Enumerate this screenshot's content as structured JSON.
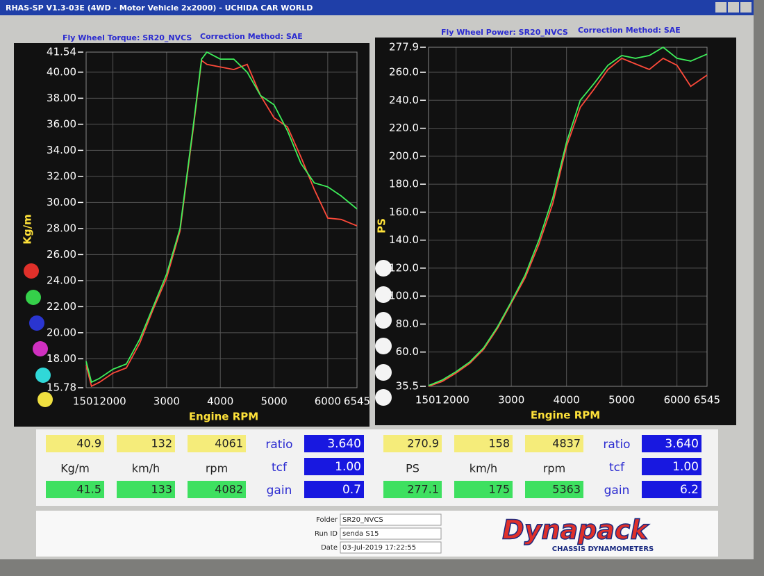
{
  "window": {
    "title": "RHAS-SP V1.3-03E  (4WD - Motor Vehicle 2x2000) - UCHIDA CAR WORLD"
  },
  "chart_data": [
    {
      "type": "line",
      "title": "Fly Wheel Torque: SR20_NVCS",
      "subtitle": "Correction Method: SAE",
      "x_label": "Engine RPM",
      "y_label": "Kg/m",
      "x": [
        1501,
        1600,
        1750,
        2000,
        2250,
        2500,
        2750,
        3000,
        3250,
        3500,
        3650,
        3750,
        4000,
        4250,
        4500,
        4750,
        5000,
        5250,
        5500,
        5750,
        6000,
        6250,
        6545
      ],
      "series": [
        {
          "color": "#ff4a3a",
          "values": [
            17.5,
            15.9,
            16.2,
            16.9,
            17.3,
            19.2,
            21.8,
            24.2,
            27.8,
            35.8,
            40.9,
            40.6,
            40.4,
            40.2,
            40.6,
            38.2,
            36.5,
            35.8,
            33.5,
            31.0,
            28.8,
            28.7,
            28.2
          ]
        },
        {
          "color": "#3ef05a",
          "values": [
            17.8,
            16.2,
            16.5,
            17.2,
            17.6,
            19.5,
            22.0,
            24.5,
            28.0,
            36.0,
            41.0,
            41.54,
            41.0,
            41.0,
            40.0,
            38.2,
            37.5,
            35.5,
            33.0,
            31.5,
            31.2,
            30.5,
            29.5
          ]
        }
      ],
      "xlim": [
        1501,
        6545
      ],
      "xticks": [
        1501,
        2000,
        3000,
        4000,
        5000,
        6000,
        6545
      ],
      "ylim": [
        15.78,
        41.54
      ],
      "yticks": [
        15.78,
        {
          "value": 18,
          "label": "18.00"
        },
        {
          "value": 20,
          "label": "20.00"
        },
        {
          "value": 22,
          "label": "22.00"
        },
        {
          "value": 24,
          "label": "24.00"
        },
        {
          "value": 26,
          "label": "26.00"
        },
        {
          "value": 28,
          "label": "28.00"
        },
        {
          "value": 30,
          "label": "30.00"
        },
        {
          "value": 32,
          "label": "32.00"
        },
        {
          "value": 34,
          "label": "34.00"
        },
        {
          "value": 36,
          "label": "36.00"
        },
        {
          "value": 38,
          "label": "38.00"
        },
        {
          "value": 40,
          "label": "40.00"
        },
        41.54
      ],
      "grid": true
    },
    {
      "type": "line",
      "title": "Fly Wheel Power: SR20_NVCS",
      "subtitle": "Correction Method: SAE",
      "x_label": "Engine RPM",
      "y_label": "PS",
      "x": [
        1501,
        1750,
        2000,
        2250,
        2500,
        2750,
        3000,
        3250,
        3500,
        3750,
        4000,
        4250,
        4500,
        4750,
        5000,
        5250,
        5500,
        5750,
        6000,
        6250,
        6545
      ],
      "series": [
        {
          "color": "#ff4a3a",
          "values": [
            35.5,
            39,
            45,
            52,
            62,
            77,
            95,
            113,
            137,
            166,
            207,
            235,
            248,
            262,
            270,
            266,
            262,
            270,
            265,
            250,
            258
          ]
        },
        {
          "color": "#3ef05a",
          "values": [
            36,
            40,
            46,
            53,
            63,
            78,
            96,
            115,
            140,
            170,
            210,
            240,
            252,
            265,
            272,
            270,
            272,
            277.9,
            270,
            268,
            273
          ]
        }
      ],
      "xlim": [
        1501,
        6545
      ],
      "xticks": [
        1501,
        2000,
        3000,
        4000,
        5000,
        6000,
        6545
      ],
      "ylim": [
        35.5,
        277.9
      ],
      "yticks": [
        35.5,
        {
          "value": 60,
          "label": "60.0"
        },
        {
          "value": 80,
          "label": "80.0"
        },
        {
          "value": 100,
          "label": "100.0"
        },
        {
          "value": 120,
          "label": "120.0"
        },
        {
          "value": 140,
          "label": "140.0"
        },
        {
          "value": 160,
          "label": "160.0"
        },
        {
          "value": 180,
          "label": "180.0"
        },
        {
          "value": 200,
          "label": "200.0"
        },
        {
          "value": 220,
          "label": "220.0"
        },
        {
          "value": 240,
          "label": "240.0"
        },
        {
          "value": 260,
          "label": "260.0"
        },
        277.9
      ],
      "grid": true
    }
  ],
  "readouts": [
    {
      "current": [
        "40.9",
        "132",
        "4061"
      ],
      "units": [
        "Kg/m",
        "km/h",
        "rpm"
      ],
      "peak": [
        "41.5",
        "133",
        "4082"
      ],
      "params": [
        {
          "label": "ratio",
          "value": "3.640"
        },
        {
          "label": "tcf",
          "value": "1.00"
        },
        {
          "label": "gain",
          "value": "0.7"
        }
      ]
    },
    {
      "current": [
        "270.9",
        "158",
        "4837"
      ],
      "units": [
        "PS",
        "km/h",
        "rpm"
      ],
      "peak": [
        "277.1",
        "175",
        "5363"
      ],
      "params": [
        {
          "label": "ratio",
          "value": "3.640"
        },
        {
          "label": "tcf",
          "value": "1.00"
        },
        {
          "label": "gain",
          "value": "6.2"
        }
      ]
    }
  ],
  "footer": {
    "fields": [
      {
        "label": "Folder",
        "value": "SR20_NVCS"
      },
      {
        "label": "Run ID",
        "value": "senda S15"
      },
      {
        "label": "Date",
        "value": "03-Jul-2019  17:22:55"
      }
    ],
    "logo": "Dynapack",
    "logo_sub": "CHASSIS  DYNAMOMETERS"
  }
}
